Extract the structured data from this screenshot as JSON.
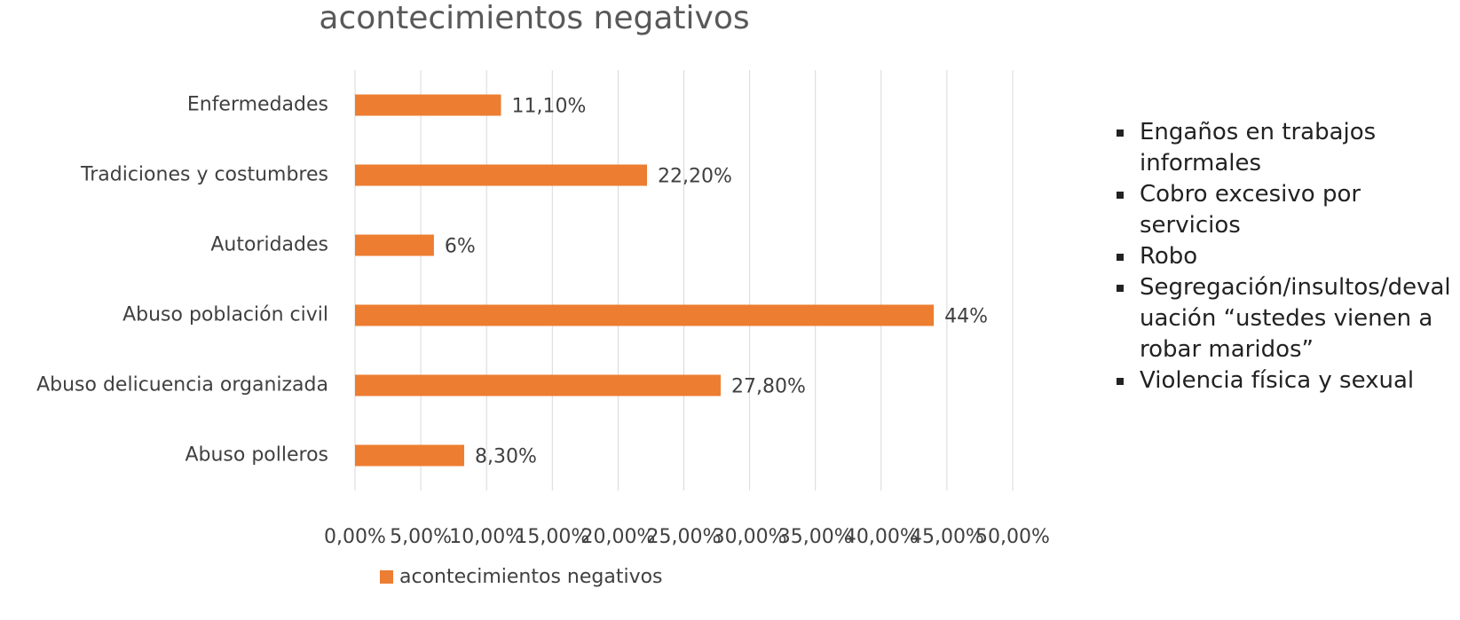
{
  "chart_data": {
    "type": "barh",
    "title": "acontecimientos negativos",
    "categories": [
      "Enfermedades",
      "Tradiciones y costumbres",
      "Autoridades",
      "Abuso población civil",
      "Abuso delicuencia organizada",
      "Abuso polleros"
    ],
    "series": [
      {
        "name": "acontecimientos negativos",
        "color": "#ed7d31",
        "values": [
          11.1,
          22.2,
          6,
          44,
          27.8,
          8.3
        ],
        "value_labels": [
          "11,10%",
          "22,20%",
          "6%",
          "44%",
          "27,80%",
          "8,30%"
        ]
      }
    ],
    "xlim": [
      0,
      50
    ],
    "xticks": [
      {
        "value": 0,
        "label": "0,00%"
      },
      {
        "value": 5,
        "label": "5,00%"
      },
      {
        "value": 10,
        "label": "10,00%"
      },
      {
        "value": 15,
        "label": "15,00%"
      },
      {
        "value": 20,
        "label": "20,00%"
      },
      {
        "value": 25,
        "label": "25,00%"
      },
      {
        "value": 30,
        "label": "30,00%"
      },
      {
        "value": 35,
        "label": "35,00%"
      },
      {
        "value": 40,
        "label": "40,00%"
      },
      {
        "value": 45,
        "label": "45,00%"
      },
      {
        "value": 50,
        "label": "50,00%"
      }
    ],
    "grid": true,
    "legend": "bottom"
  },
  "side_list": [
    "Engaños en trabajos informales",
    "Cobro excesivo por servicios",
    "Robo",
    "Segregación/insultos/devaluación “ustedes vienen a robar maridos”",
    "Violencia física y sexual"
  ]
}
